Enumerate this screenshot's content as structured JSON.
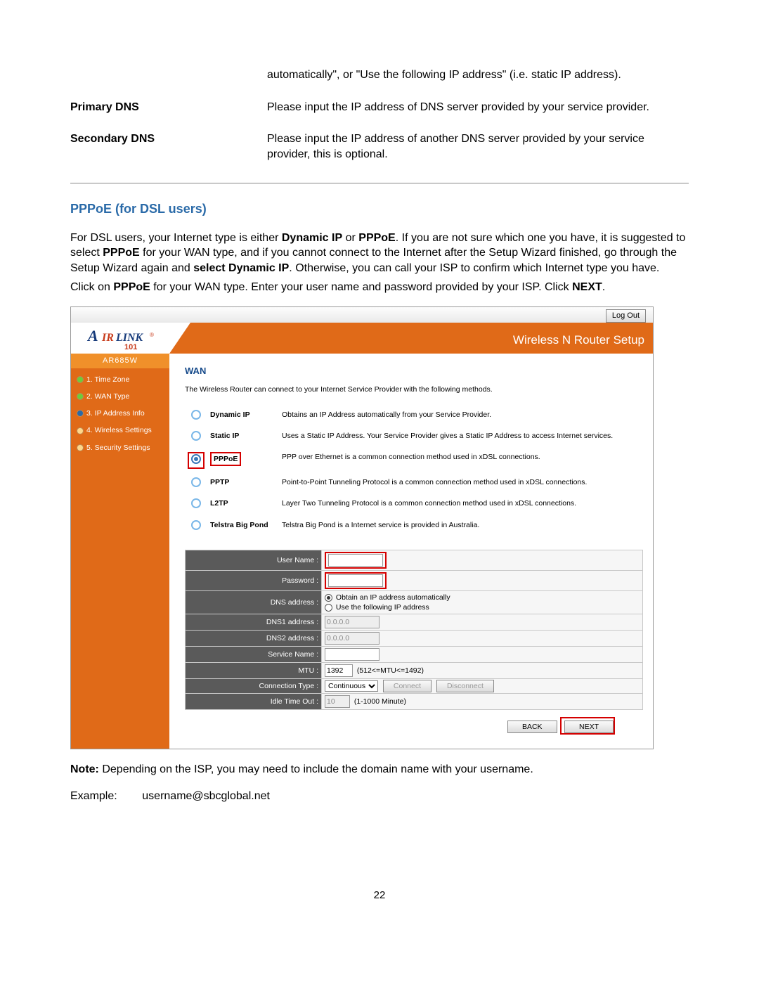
{
  "intro_continuation": "automatically\", or \"Use the following IP address\" (i.e. static IP address).",
  "defs": {
    "primary_dns_label": "Primary DNS",
    "primary_dns_text": "Please input the IP address of DNS server provided by your service provider.",
    "secondary_dns_label": "Secondary DNS",
    "secondary_dns_text": "Please input the IP address of another DNS server provided by your service provider, this is optional."
  },
  "section_title": "PPPoE (for DSL users)",
  "para1_a": "For DSL users, your Internet type is either ",
  "para1_b": "Dynamic IP",
  "para1_c": " or ",
  "para1_d": "PPPoE",
  "para1_e": ". If you are not sure which one you have, it is suggested to select ",
  "para1_f": "PPPoE",
  "para1_g": " for your WAN type, and if you cannot connect to the Internet after the Setup Wizard finished, go through the Setup Wizard again and ",
  "para1_h": "select Dynamic IP",
  "para1_i": ". Otherwise, you can call your ISP to confirm which Internet type you have.",
  "para2_a": "Click on ",
  "para2_b": "PPPoE",
  "para2_c": " for your WAN type. Enter your user name and password provided by your ISP. Click ",
  "para2_d": "NEXT",
  "para2_e": ".",
  "note_prefix": "Note:",
  "note_text": " Depending on the ISP, you may need to include the domain name with your username.",
  "example_label": "Example:",
  "example_value": "username@sbcglobal.net",
  "page_number": "22",
  "screenshot": {
    "logout": "Log Out",
    "banner_title": "Wireless N Router Setup",
    "model": "AR685W",
    "logo_main": "IRLINK",
    "logo_sub": "101",
    "nav": [
      {
        "label": "1. Time Zone",
        "done": true
      },
      {
        "label": "2. WAN Type",
        "done": true
      },
      {
        "label": "3. IP Address Info",
        "current": true
      },
      {
        "label": "4. Wireless Settings"
      },
      {
        "label": "5. Security Settings"
      }
    ],
    "wan_heading": "WAN",
    "wan_sub": "The Wireless Router can connect to your Internet Service Provider with the following methods.",
    "wan_options": [
      {
        "name": "Dynamic IP",
        "desc": "Obtains an IP Address automatically from your Service Provider."
      },
      {
        "name": "Static IP",
        "desc": "Uses a Static IP Address. Your Service Provider gives a Static IP Address to access Internet services."
      },
      {
        "name": "PPPoE",
        "desc": "PPP over Ethernet is a common connection method used in xDSL connections.",
        "selected": true,
        "highlighted": true
      },
      {
        "name": "PPTP",
        "desc": "Point-to-Point Tunneling Protocol is a common connection method used in xDSL connections."
      },
      {
        "name": "L2TP",
        "desc": "Layer Two Tunneling Protocol is a common connection method used in xDSL connections."
      },
      {
        "name": "Telstra Big Pond",
        "desc": "Telstra Big Pond is a Internet service is provided in Australia."
      }
    ],
    "form": {
      "user_name_lbl": "User Name :",
      "password_lbl": "Password :",
      "dns_address_lbl": "DNS address :",
      "dns_auto": "Obtain an IP address automatically",
      "dns_manual": "Use the following IP address",
      "dns1_lbl": "DNS1 address :",
      "dns2_lbl": "DNS2 address :",
      "dns_placeholder": "0.0.0.0",
      "service_lbl": "Service Name :",
      "mtu_lbl": "MTU :",
      "mtu_val": "1392",
      "mtu_hint": "(512<=MTU<=1492)",
      "conn_type_lbl": "Connection Type :",
      "conn_type_val": "Continuous",
      "connect_btn": "Connect",
      "disconnect_btn": "Disconnect",
      "idle_lbl": "Idle Time Out :",
      "idle_val": "10",
      "idle_hint": "(1-1000 Minute)",
      "back_btn": "BACK",
      "next_btn": "NEXT"
    }
  }
}
